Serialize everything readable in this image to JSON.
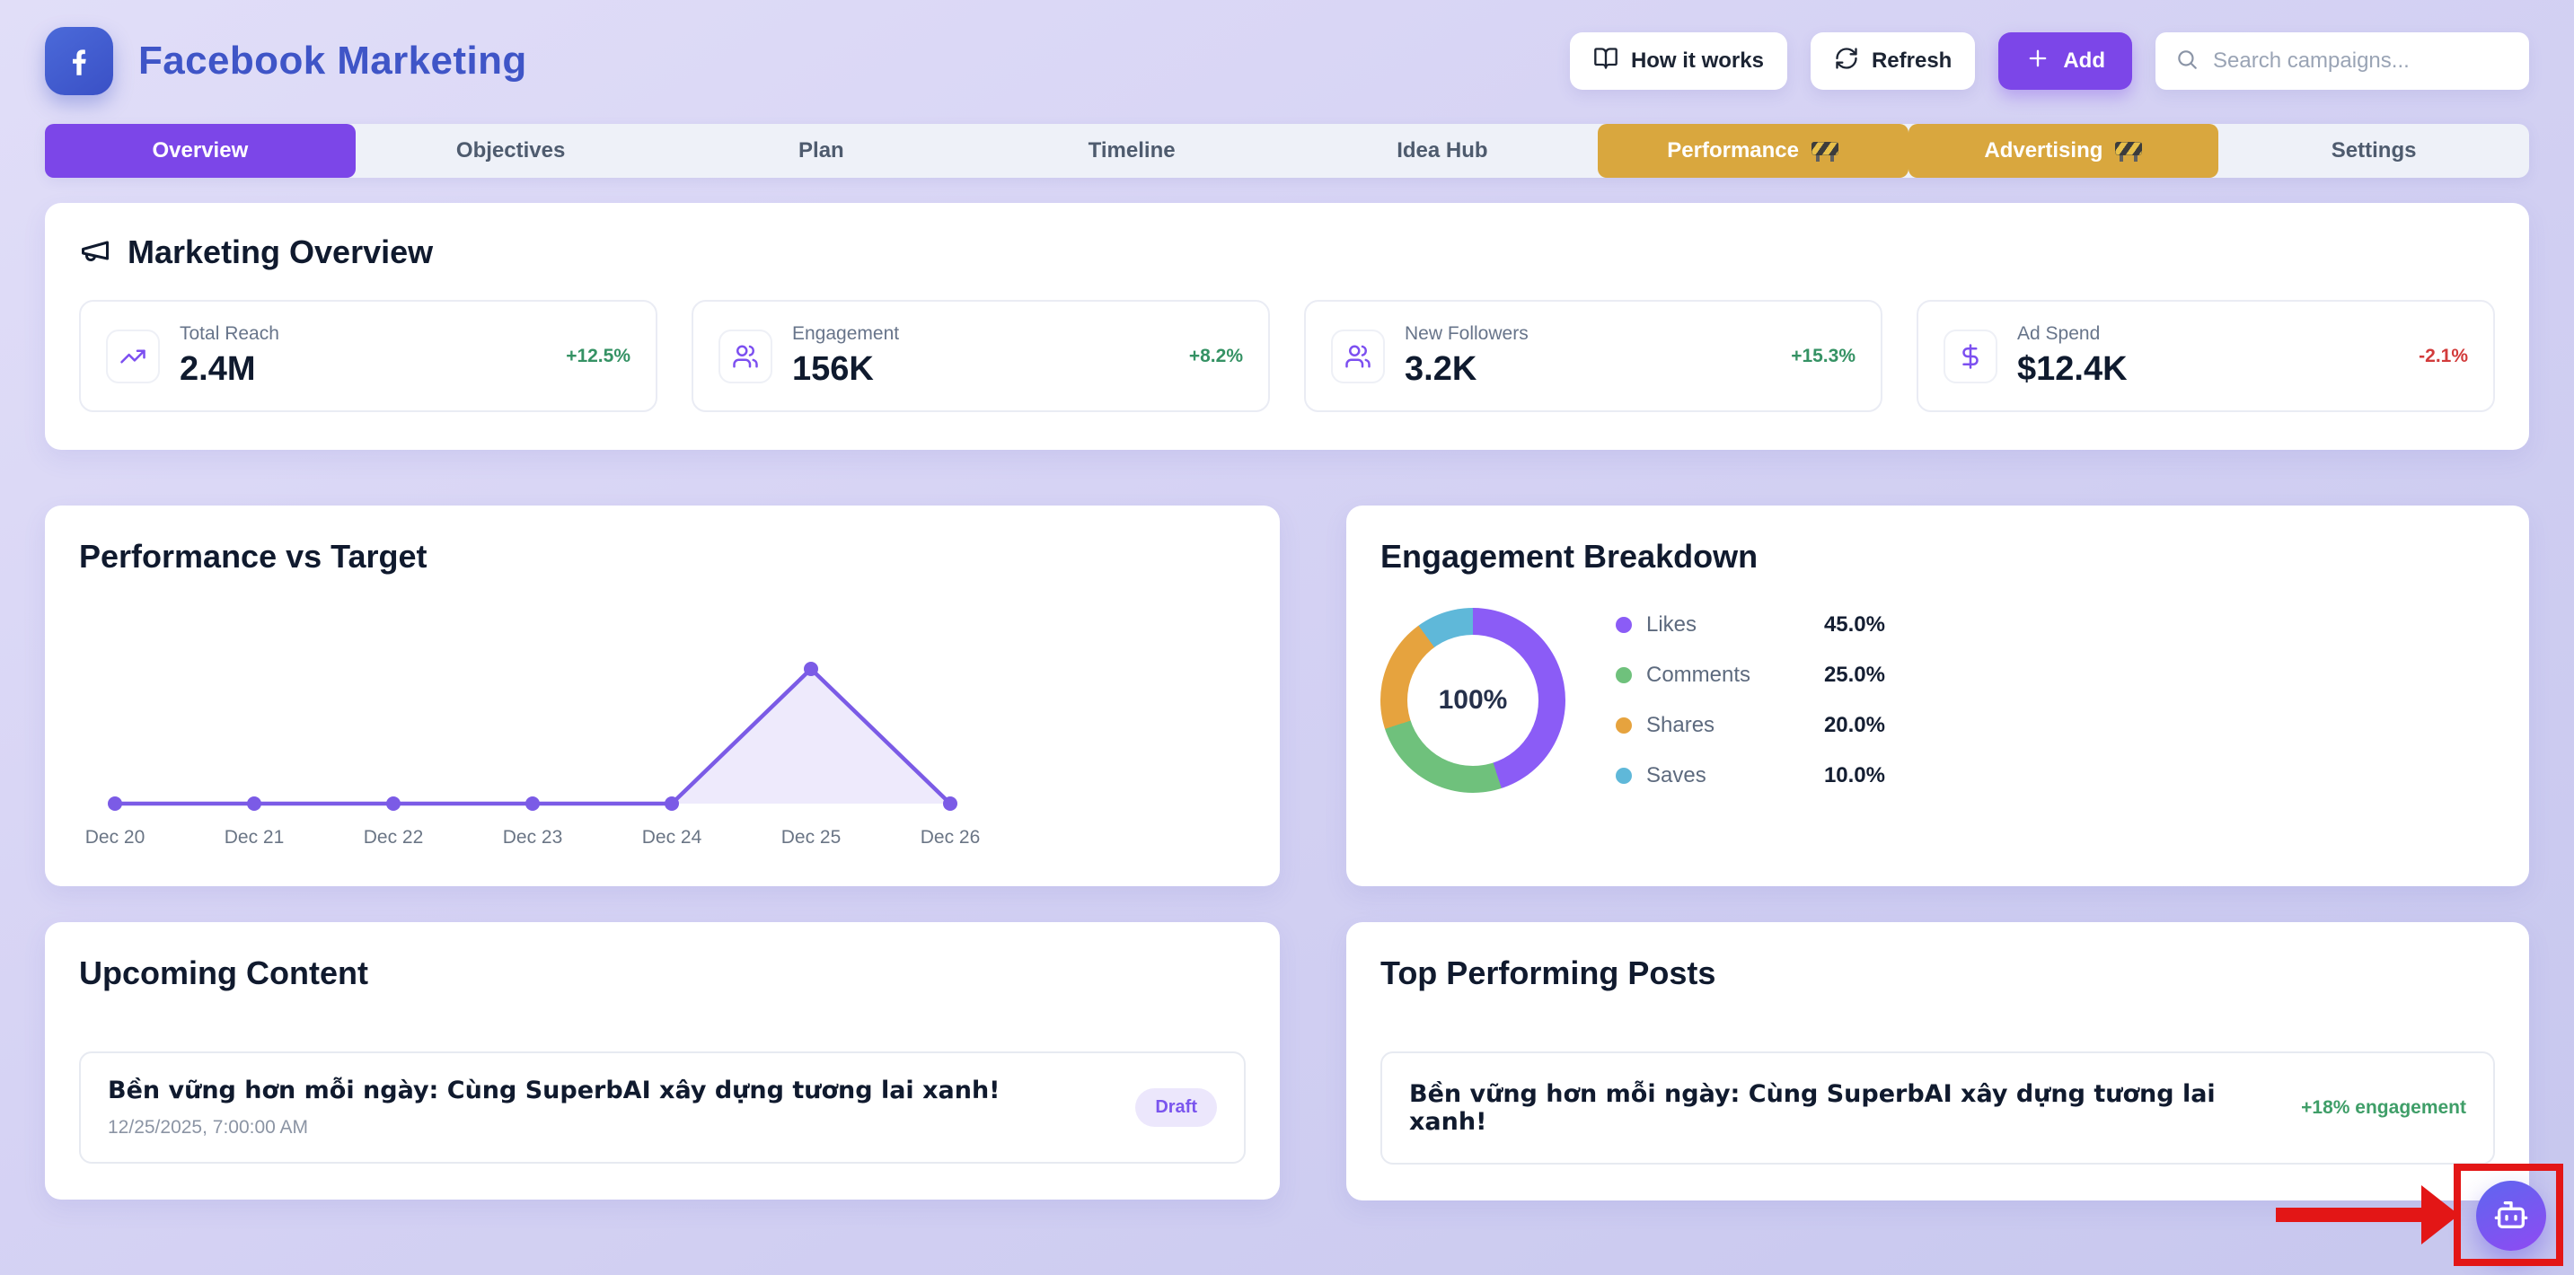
{
  "header": {
    "title": "Facebook Marketing",
    "how_it_works_label": "How it works",
    "refresh_label": "Refresh",
    "add_label": "Add",
    "search_placeholder": "Search campaigns..."
  },
  "tabs": [
    {
      "label": "Overview",
      "state": "active"
    },
    {
      "label": "Objectives",
      "state": "default"
    },
    {
      "label": "Plan",
      "state": "default"
    },
    {
      "label": "Timeline",
      "state": "default"
    },
    {
      "label": "Idea Hub",
      "state": "default"
    },
    {
      "label": "Performance",
      "state": "under-construction",
      "badge_icon": "construction-barrier-icon"
    },
    {
      "label": "Advertising",
      "state": "under-construction",
      "badge_icon": "construction-barrier-icon"
    },
    {
      "label": "Settings",
      "state": "default"
    }
  ],
  "overview": {
    "title": "Marketing Overview",
    "stats": [
      {
        "label": "Total Reach",
        "value": "2.4M",
        "change": "+12.5%",
        "trend": "up",
        "icon": "trending-up-icon"
      },
      {
        "label": "Engagement",
        "value": "156K",
        "change": "+8.2%",
        "trend": "up",
        "icon": "users-icon"
      },
      {
        "label": "New Followers",
        "value": "3.2K",
        "change": "+15.3%",
        "trend": "up",
        "icon": "users-icon"
      },
      {
        "label": "Ad Spend",
        "value": "$12.4K",
        "change": "-2.1%",
        "trend": "down",
        "icon": "dollar-icon"
      }
    ]
  },
  "chart_data": [
    {
      "type": "area",
      "title": "Performance vs Target",
      "x": [
        "Dec 20",
        "Dec 21",
        "Dec 22",
        "Dec 23",
        "Dec 24",
        "Dec 25",
        "Dec 26"
      ],
      "series": [
        {
          "name": "Performance",
          "values": [
            0,
            0,
            0,
            0,
            0,
            1,
            0
          ]
        }
      ],
      "xlabel": "",
      "ylabel": "",
      "y_axis_visible": false,
      "note": "flat at zero except a single spike on Dec 25; y-axis unlabeled",
      "line_color": "#7b5be6",
      "fill_color": "rgba(123,91,230,0.13)",
      "grid": false,
      "legend_position": "none"
    },
    {
      "type": "pie",
      "title": "Engagement Breakdown",
      "center_label": "100%",
      "segments": [
        {
          "label": "Likes",
          "value": 45.0,
          "display": "45.0%",
          "color": "#8b5cf6"
        },
        {
          "label": "Comments",
          "value": 25.0,
          "display": "25.0%",
          "color": "#6fc17c"
        },
        {
          "label": "Shares",
          "value": 20.0,
          "display": "20.0%",
          "color": "#e6a33e"
        },
        {
          "label": "Saves",
          "value": 10.0,
          "display": "10.0%",
          "color": "#5fb8d9"
        }
      ],
      "legend_position": "right"
    }
  ],
  "upcoming": {
    "title": "Upcoming Content",
    "items": [
      {
        "title": "Bền vững hơn mỗi ngày: Cùng SuperbAI xây dựng tương lai xanh!",
        "datetime": "12/25/2025, 7:00:00 AM",
        "badge": "Draft"
      }
    ]
  },
  "top_posts": {
    "title": "Top Performing Posts",
    "items": [
      {
        "title": "Bền vững hơn mỗi ngày: Cùng SuperbAI xây dựng tương lai xanh!",
        "metric": "+18% engagement"
      }
    ]
  },
  "fab": {
    "icon": "robot-icon"
  },
  "annotation": {
    "shape": "rectangle-and-arrow",
    "color": "#e31616"
  }
}
